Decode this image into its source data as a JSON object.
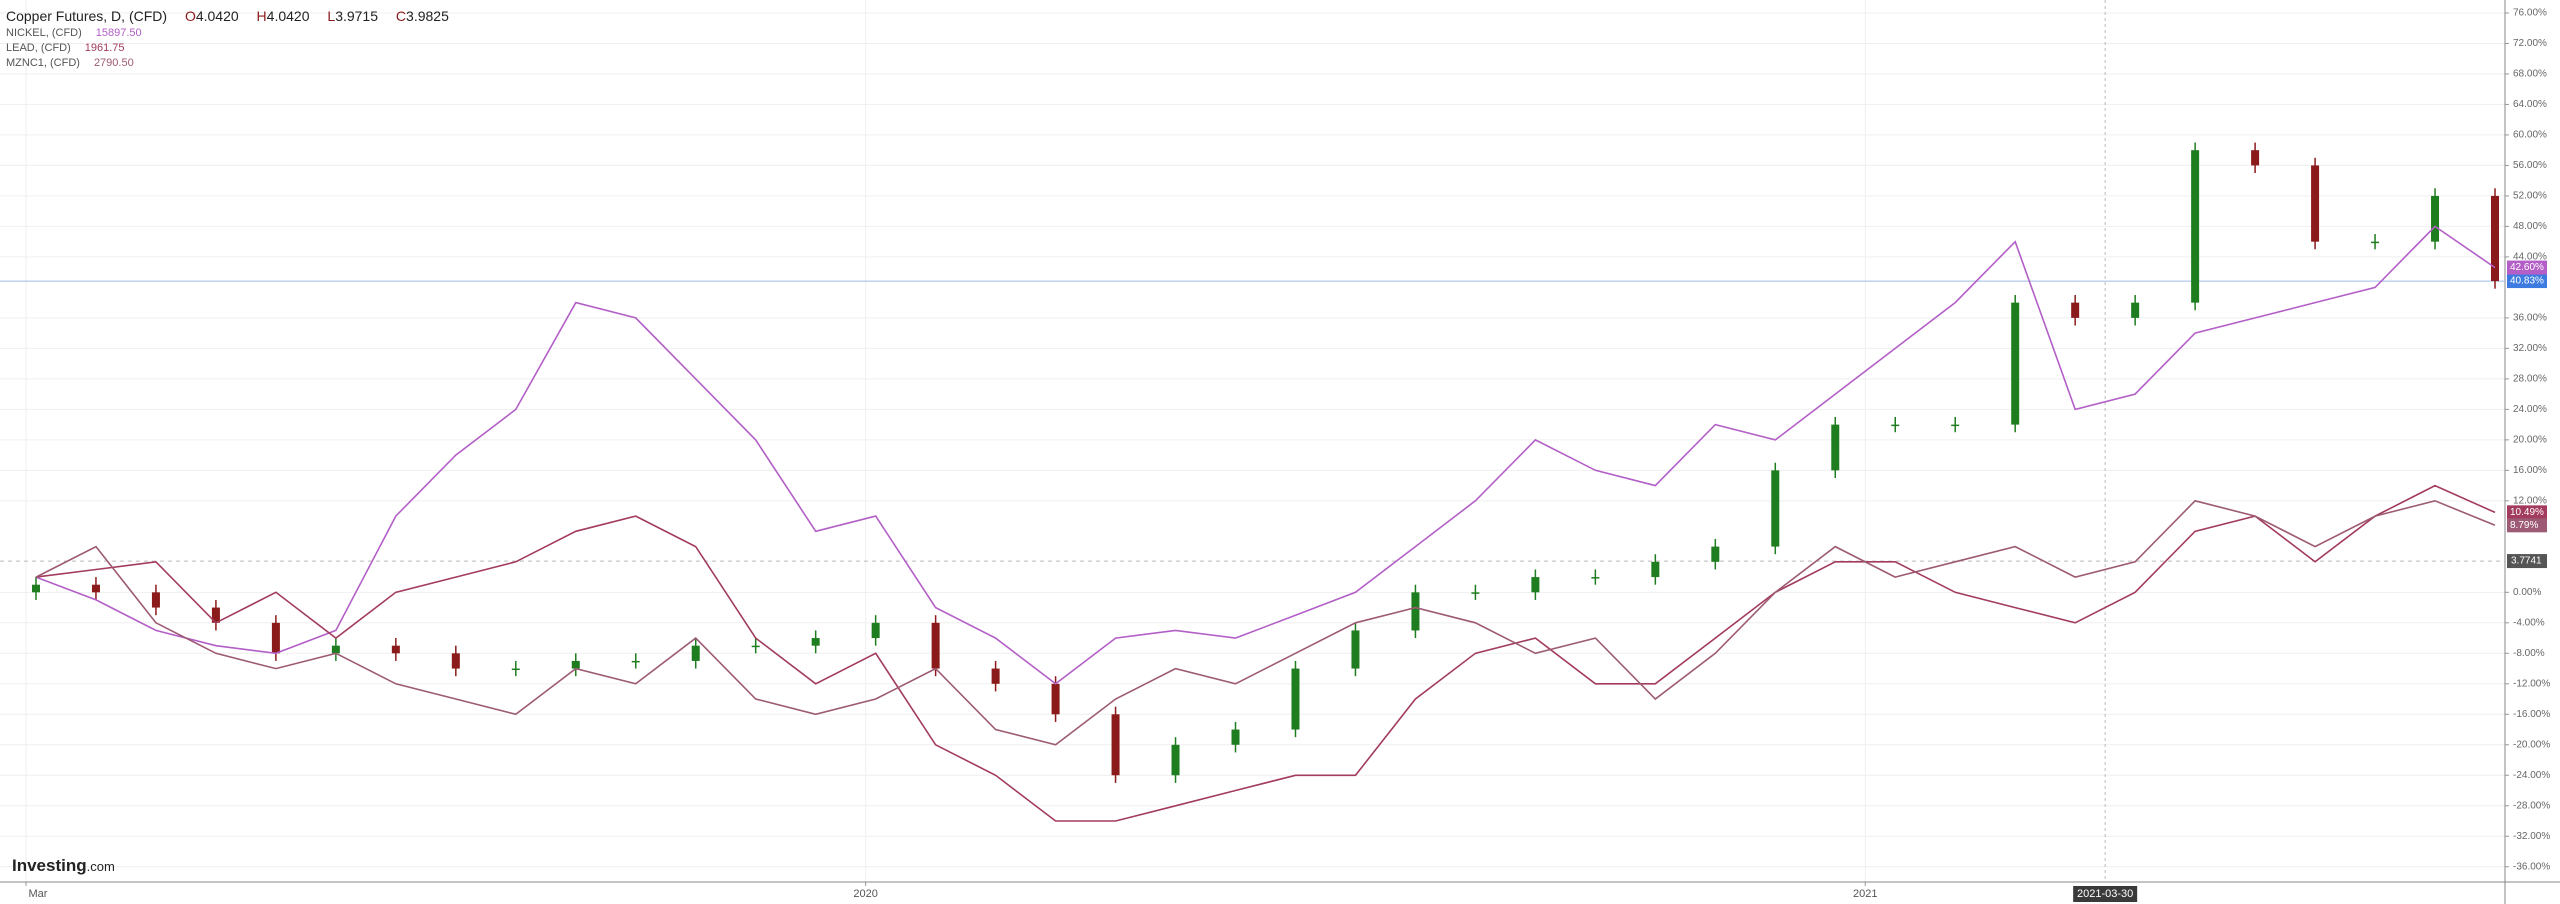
{
  "chart_data": {
    "type": "line",
    "title": "Copper Futures, D, (CFD)",
    "ohlc_letters": [
      "O",
      "H",
      "L",
      "C"
    ],
    "ohlc_values": [
      "4.0420",
      "4.0420",
      "3.9715",
      "3.9825"
    ],
    "logo": "Investing",
    "logo_suffix": ".com",
    "xlim": [
      2019.134,
      2021.64
    ],
    "xticks": [
      {
        "value": 2019.16,
        "label": "Mar"
      },
      {
        "value": 2020,
        "label": "2020"
      },
      {
        "value": 2021,
        "label": "2021"
      }
    ],
    "crosshair": {
      "value": 2021.24,
      "label": "2021-03-30"
    },
    "ylim": [
      -38,
      77.7
    ],
    "yticks": [
      {
        "value": 76,
        "label": "76.00%"
      },
      {
        "value": 72,
        "label": "72.00%"
      },
      {
        "value": 68,
        "label": "68.00%"
      },
      {
        "value": 64,
        "label": "64.00%"
      },
      {
        "value": 60,
        "label": "60.00%"
      },
      {
        "value": 56,
        "label": "56.00%"
      },
      {
        "value": 52,
        "label": "52.00%"
      },
      {
        "value": 48,
        "label": "48.00%"
      },
      {
        "value": 44,
        "label": "44.00%"
      },
      {
        "value": 36,
        "label": "36.00%"
      },
      {
        "value": 32,
        "label": "32.00%"
      },
      {
        "value": 28,
        "label": "28.00%"
      },
      {
        "value": 24,
        "label": "24.00%"
      },
      {
        "value": 20,
        "label": "20.00%"
      },
      {
        "value": 16,
        "label": "16.00%"
      },
      {
        "value": 12,
        "label": "12.00%"
      },
      {
        "value": 0,
        "label": "0.00%"
      },
      {
        "value": -4,
        "label": "-4.00%"
      },
      {
        "value": -8,
        "label": "-8.00%"
      },
      {
        "value": -12,
        "label": "-12.00%"
      },
      {
        "value": -16,
        "label": "-16.00%"
      },
      {
        "value": -20,
        "label": "-20.00%"
      },
      {
        "value": -24,
        "label": "-24.00%"
      },
      {
        "value": -28,
        "label": "-28.00%"
      },
      {
        "value": -32,
        "label": "-32.00%"
      },
      {
        "value": -36,
        "label": "-36.00%"
      }
    ],
    "grid": true,
    "reference_level": 4.1,
    "reference_label": "3.7741",
    "x": [
      2019.17,
      2019.23,
      2019.29,
      2019.35,
      2019.41,
      2019.47,
      2019.53,
      2019.59,
      2019.65,
      2019.71,
      2019.77,
      2019.83,
      2019.89,
      2019.95,
      2020.01,
      2020.07,
      2020.13,
      2020.19,
      2020.25,
      2020.31,
      2020.37,
      2020.43,
      2020.49,
      2020.55,
      2020.61,
      2020.67,
      2020.73,
      2020.79,
      2020.85,
      2020.91,
      2020.97,
      2021.03,
      2021.09,
      2021.15,
      2021.21,
      2021.27,
      2021.33,
      2021.39,
      2021.45,
      2021.51,
      2021.57,
      2021.63
    ],
    "series": [
      {
        "name": "Copper Futures, D, (CFD)",
        "type": "candlestick",
        "up_color": "#1e7d1e",
        "down_color": "#8b1a1a",
        "label_color": "#3d7be0",
        "last_label": "40.83%",
        "open": [
          0,
          1,
          0,
          -2,
          -4,
          -8,
          -7,
          -8,
          -10,
          -10,
          -9,
          -9,
          -7,
          -7,
          -6,
          -4,
          -10,
          -12,
          -16,
          -24,
          -20,
          -18,
          -10,
          -5,
          0,
          0,
          2,
          2,
          4,
          6,
          16,
          22,
          22,
          22,
          38,
          36,
          38,
          58,
          56,
          46,
          46,
          52
        ],
        "high": [
          2,
          2,
          1,
          -1,
          -3,
          -6,
          -6,
          -7,
          -9,
          -8,
          -8,
          -6,
          -6,
          -5,
          -3,
          -3,
          -9,
          -11,
          -15,
          -19,
          -17,
          -9,
          -4,
          1,
          1,
          3,
          3,
          5,
          7,
          17,
          23,
          23,
          23,
          39,
          39,
          39,
          59,
          59,
          57,
          47,
          53,
          53
        ],
        "low": [
          -1,
          -1,
          -3,
          -5,
          -9,
          -9,
          -9,
          -11,
          -11,
          -11,
          -10,
          -10,
          -8,
          -8,
          -7,
          -11,
          -13,
          -17,
          -25,
          -25,
          -21,
          -19,
          -11,
          -6,
          -1,
          -1,
          1,
          1,
          3,
          5,
          15,
          21,
          21,
          21,
          35,
          35,
          37,
          55,
          45,
          45,
          45,
          39.83
        ],
        "close": [
          1,
          0,
          -2,
          -4,
          -8,
          -7,
          -8,
          -10,
          -10,
          -9,
          -9,
          -7,
          -7,
          -6,
          -4,
          -10,
          -12,
          -16,
          -24,
          -20,
          -18,
          -10,
          -5,
          0,
          0,
          2,
          2,
          4,
          6,
          16,
          22,
          22,
          22,
          38,
          36,
          38,
          58,
          56,
          46,
          46,
          52,
          40.83
        ]
      },
      {
        "name": "NICKEL, (CFD)",
        "price": "15897.50",
        "type": "line",
        "color": "#b35fc7",
        "last_label": "42.60%",
        "values": [
          2,
          -1,
          -5,
          -7,
          -8,
          -5,
          10,
          18,
          24,
          38,
          36,
          28,
          20,
          8,
          10,
          -2,
          -6,
          -12,
          -6,
          -5,
          -6,
          -3,
          0,
          6,
          12,
          20,
          16,
          14,
          22,
          20,
          26,
          32,
          38,
          46,
          24,
          26,
          34,
          36,
          38,
          40,
          48,
          42.6
        ]
      },
      {
        "name": "LEAD, (CFD)",
        "price": "1961.75",
        "type": "line",
        "color": "#a23b5e",
        "last_label": "10.49%",
        "values": [
          2,
          3,
          4,
          -4,
          0,
          -6,
          0,
          2,
          4,
          8,
          10,
          6,
          -6,
          -12,
          -8,
          -20,
          -24,
          -30,
          -30,
          -28,
          -26,
          -24,
          -24,
          -14,
          -8,
          -6,
          -12,
          -12,
          -6,
          0,
          4,
          4,
          0,
          -2,
          -4,
          0,
          8,
          10,
          4,
          10,
          14,
          10.49
        ]
      },
      {
        "name": "MZNC1, (CFD)",
        "price": "2790.50",
        "type": "line",
        "color": "#9d5a74",
        "last_label": "8.79%",
        "values": [
          2,
          6,
          -4,
          -8,
          -10,
          -8,
          -12,
          -14,
          -16,
          -10,
          -12,
          -6,
          -14,
          -16,
          -14,
          -10,
          -18,
          -20,
          -14,
          -10,
          -12,
          -8,
          -4,
          -2,
          -4,
          -8,
          -6,
          -14,
          -8,
          0,
          6,
          2,
          4,
          6,
          2,
          4,
          12,
          10,
          6,
          10,
          12,
          8.79
        ]
      }
    ]
  }
}
